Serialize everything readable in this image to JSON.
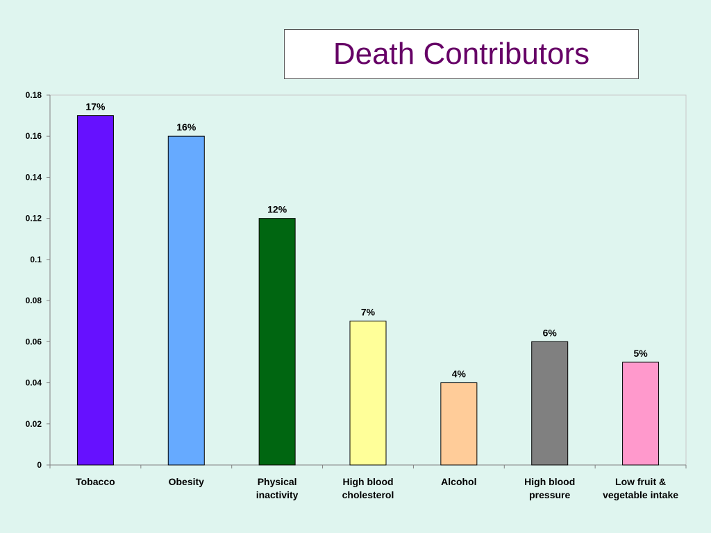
{
  "slide": {
    "title": "Death Contributors"
  },
  "chart_data": {
    "type": "bar",
    "categories": [
      [
        "Tobacco"
      ],
      [
        "Obesity"
      ],
      [
        "Physical",
        "inactivity"
      ],
      [
        "High blood",
        "cholesterol"
      ],
      [
        "Alcohol"
      ],
      [
        "High blood",
        "pressure"
      ],
      [
        "Low fruit &",
        "vegetable intake"
      ]
    ],
    "values": [
      0.17,
      0.16,
      0.12,
      0.07,
      0.04,
      0.06,
      0.05
    ],
    "data_labels": [
      "17%",
      "16%",
      "12%",
      "7%",
      "4%",
      "6%",
      "5%"
    ],
    "colors": [
      "#6611ff",
      "#66aaff",
      "#006611",
      "#ffff99",
      "#ffcc99",
      "#808080",
      "#ff99cc"
    ],
    "ylim": [
      0,
      0.18
    ],
    "yticks": [
      0,
      0.02,
      0.04,
      0.06,
      0.08,
      0.1,
      0.12,
      0.14,
      0.16,
      0.18
    ],
    "ytick_labels": [
      "0",
      "0.02",
      "0.04",
      "0.06",
      "0.08",
      "0.1",
      "0.12",
      "0.14",
      "0.16",
      "0.18"
    ],
    "grid": false,
    "legend": "none",
    "xlabel": "",
    "ylabel": ""
  }
}
